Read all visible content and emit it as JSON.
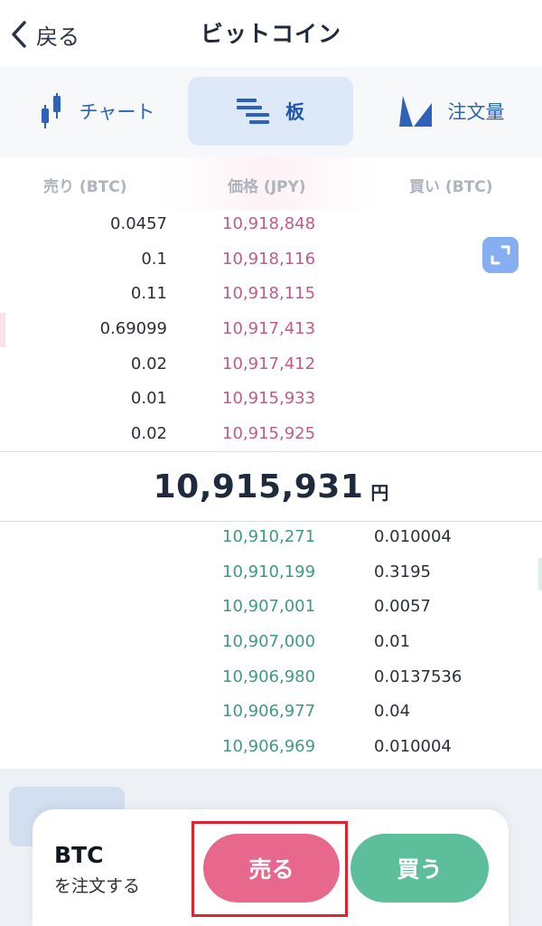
{
  "header": {
    "back_label": "戻る",
    "title": "ビットコイン"
  },
  "tabs": [
    {
      "label": "チャート",
      "icon": "candlestick-icon",
      "active": false
    },
    {
      "label": "板",
      "icon": "order-book-icon",
      "active": true
    },
    {
      "label": "注文量",
      "icon": "volume-chart-icon",
      "active": false
    }
  ],
  "columns": {
    "sell": "売り (BTC)",
    "price": "価格 (JPY)",
    "buy": "買い (BTC)"
  },
  "asks": [
    {
      "qty": "0.0457",
      "price": "10,918,848"
    },
    {
      "qty": "0.1",
      "price": "10,918,116"
    },
    {
      "qty": "0.11",
      "price": "10,918,115"
    },
    {
      "qty": "0.69099",
      "price": "10,917,413"
    },
    {
      "qty": "0.02",
      "price": "10,917,412"
    },
    {
      "qty": "0.01",
      "price": "10,915,933"
    },
    {
      "qty": "0.02",
      "price": "10,915,925"
    }
  ],
  "current": {
    "price": "10,915,931",
    "unit": "円"
  },
  "bids": [
    {
      "price": "10,910,271",
      "qty": "0.010004"
    },
    {
      "price": "10,910,199",
      "qty": "0.3195"
    },
    {
      "price": "10,907,001",
      "qty": "0.0057"
    },
    {
      "price": "10,907,000",
      "qty": "0.01"
    },
    {
      "price": "10,906,980",
      "qty": "0.0137536"
    },
    {
      "price": "10,906,977",
      "qty": "0.04"
    },
    {
      "price": "10,906,969",
      "qty": "0.010004"
    }
  ],
  "order_bar": {
    "asset": "BTC",
    "subtitle": "を注文する",
    "sell_label": "売る",
    "buy_label": "買う"
  },
  "colors": {
    "sell_accent": "#e8678c",
    "buy_accent": "#5dbe9b",
    "ask_price": "#c25a8a",
    "bid_price": "#3f9a80",
    "tab_active_bg": "#dde9f8",
    "highlight": "#e0232e"
  }
}
